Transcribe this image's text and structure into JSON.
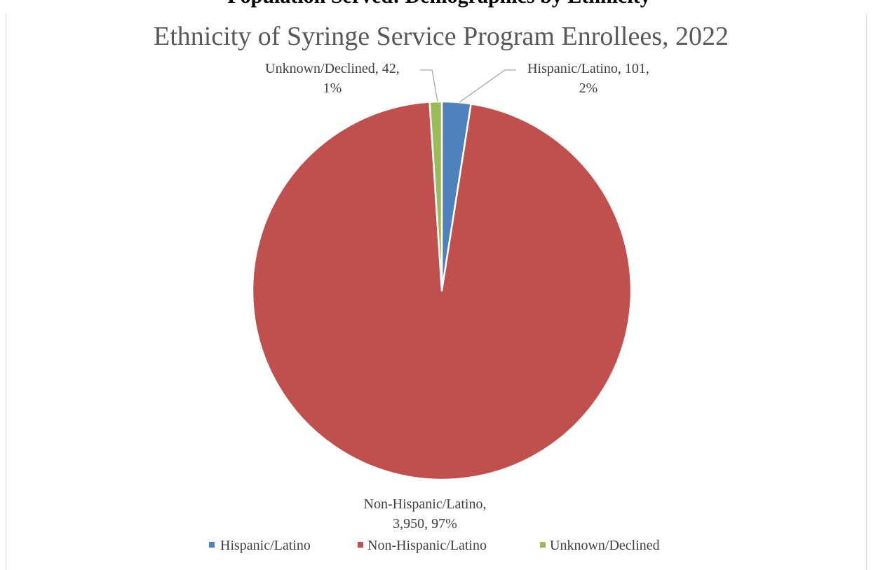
{
  "document": {
    "cut_heading": "Population Served: Demographics by Ethnicity"
  },
  "chart_data": {
    "type": "pie",
    "title": "Ethnicity of Syringe Service Program Enrollees, 2022",
    "slices": [
      {
        "name": "Hispanic/Latino",
        "value": 101,
        "percent": "2%",
        "color": "#4f81bd"
      },
      {
        "name": "Non-Hispanic/Latino",
        "value": 3950,
        "percent": "97%",
        "color": "#c0504d"
      },
      {
        "name": "Unknown/Declined",
        "value": 42,
        "percent": "1%",
        "color": "#9bbb59"
      }
    ],
    "data_labels": {
      "hispanic_line1": "Hispanic/Latino, 101,",
      "hispanic_line2": "2%",
      "nonhispanic_line1": "Non-Hispanic/Latino,",
      "nonhispanic_line2": "3,950, 97%",
      "unknown_line1": "Unknown/Declined, 42,",
      "unknown_line2": "1%"
    },
    "legend": {
      "position": "bottom",
      "entries": [
        "Hispanic/Latino",
        "Non-Hispanic/Latino",
        "Unknown/Declined"
      ]
    }
  }
}
